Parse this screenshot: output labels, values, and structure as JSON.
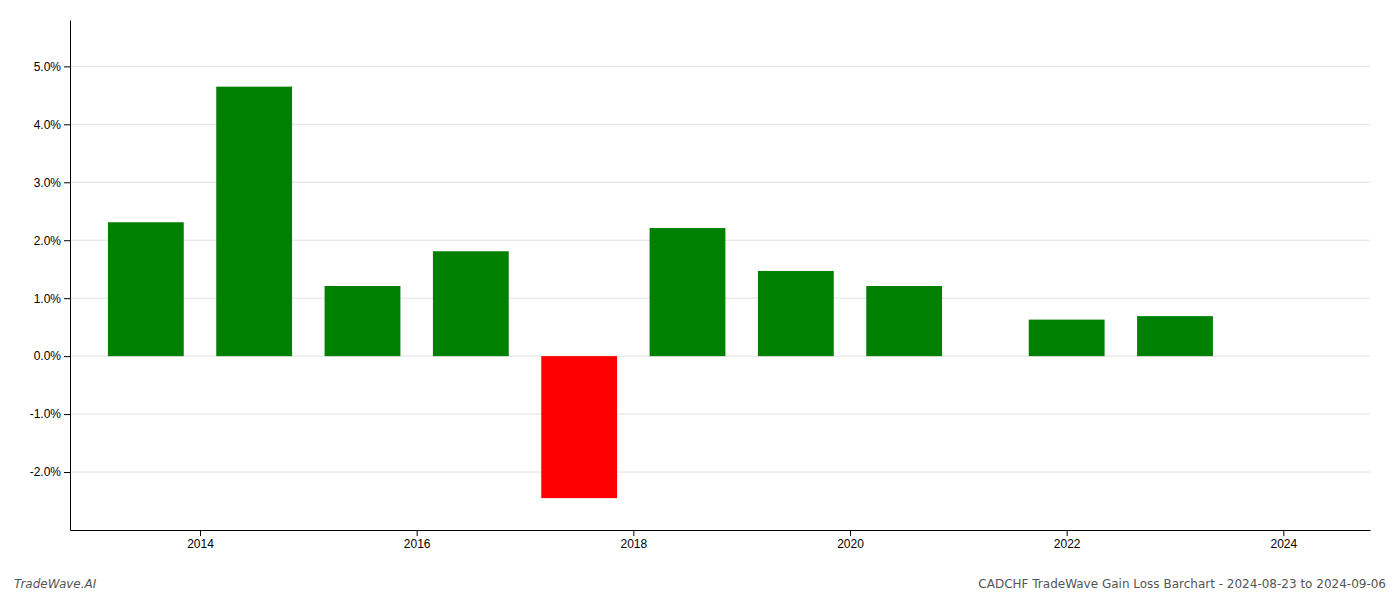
{
  "chart_data": {
    "type": "bar",
    "x": [
      2013.5,
      2014.5,
      2015.5,
      2016.5,
      2017.5,
      2018.5,
      2019.5,
      2020.5,
      2022.0,
      2023.0
    ],
    "values": [
      0.0231,
      0.0465,
      0.0121,
      0.0181,
      -0.0245,
      0.0221,
      0.0147,
      0.0121,
      0.0063,
      0.0069
    ],
    "colors": [
      "#008000",
      "#008000",
      "#008000",
      "#008000",
      "#ff0000",
      "#008000",
      "#008000",
      "#008000",
      "#008000",
      "#008000"
    ],
    "ylim": [
      -0.03,
      0.058
    ],
    "yticks": [
      {
        "value": -0.02,
        "label": "-2.0%"
      },
      {
        "value": -0.01,
        "label": "-1.0%"
      },
      {
        "value": 0.0,
        "label": "0.0%"
      },
      {
        "value": 0.01,
        "label": "1.0%"
      },
      {
        "value": 0.02,
        "label": "2.0%"
      },
      {
        "value": 0.03,
        "label": "3.0%"
      },
      {
        "value": 0.04,
        "label": "4.0%"
      },
      {
        "value": 0.05,
        "label": "5.0%"
      }
    ],
    "xlim": [
      2012.8,
      2024.8
    ],
    "xticks": [
      2014,
      2016,
      2018,
      2020,
      2022,
      2024
    ],
    "grid": true,
    "annotations": [
      "TradeWave.AI",
      "CADCHF TradeWave Gain Loss Barchart - 2024-08-23 to 2024-09-06"
    ]
  }
}
